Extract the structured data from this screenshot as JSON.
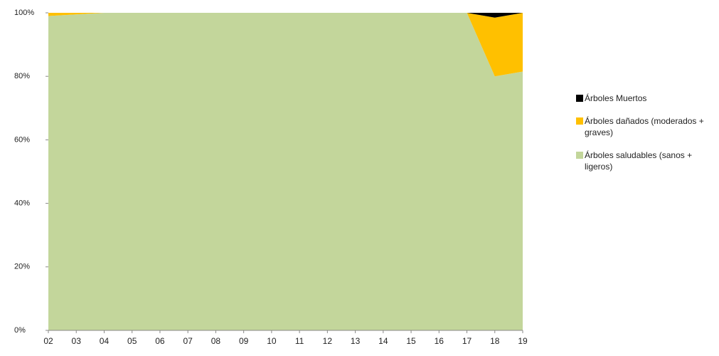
{
  "chart_data": {
    "type": "area",
    "stacked": true,
    "categories": [
      "02",
      "03",
      "04",
      "05",
      "06",
      "07",
      "08",
      "09",
      "10",
      "11",
      "12",
      "13",
      "14",
      "15",
      "16",
      "17",
      "18",
      "19"
    ],
    "series": [
      {
        "name": "Árboles saludables (sanos + ligeros)",
        "color": "#c3d69b",
        "values": [
          99,
          99.5,
          100,
          100,
          100,
          100,
          100,
          100,
          100,
          100,
          100,
          100,
          100,
          100,
          100,
          100,
          80,
          81.5
        ]
      },
      {
        "name": "Árboles dañados (moderados + graves)",
        "color": "#ffc000",
        "values": [
          1,
          0.5,
          0,
          0,
          0,
          0,
          0,
          0,
          0,
          0,
          0,
          0,
          0,
          0,
          0,
          0,
          18.5,
          18.5
        ]
      },
      {
        "name": "Árboles Muertos",
        "color": "#000000",
        "values": [
          0,
          0,
          0,
          0,
          0,
          0,
          0,
          0,
          0,
          0,
          0,
          0,
          0,
          0,
          0,
          0,
          1.5,
          0
        ]
      }
    ],
    "ylim": [
      0,
      100
    ],
    "yticks": [
      {
        "value": 0,
        "label": "0%"
      },
      {
        "value": 20,
        "label": "20%"
      },
      {
        "value": 40,
        "label": "40%"
      },
      {
        "value": 60,
        "label": "60%"
      },
      {
        "value": 80,
        "label": "80%"
      },
      {
        "value": 100,
        "label": "100%"
      }
    ]
  }
}
